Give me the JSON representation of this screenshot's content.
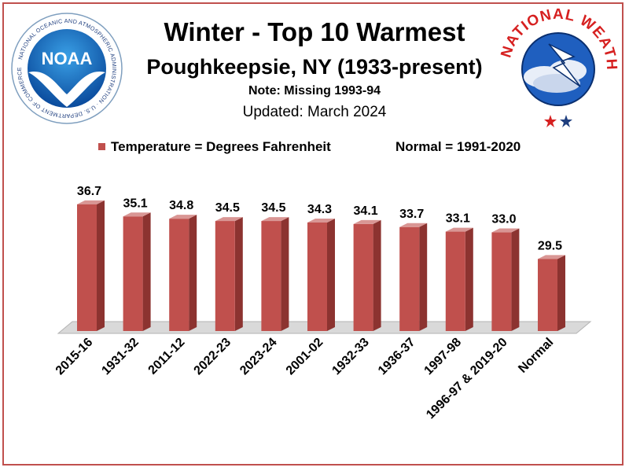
{
  "header": {
    "title": "Winter - Top 10 Warmest",
    "subtitle": "Poughkeepsie, NY (1933-present)",
    "note": "Note: Missing 1993-94",
    "updated": "Updated:  March 2024"
  },
  "legend": {
    "series_label": "Temperature = Degrees Fahrenheit",
    "normal_note": "Normal = 1991-2020"
  },
  "logos": {
    "noaa": {
      "text": "NOAA",
      "ring_text": "NATIONAL OCEANIC AND ATMOSPHERIC ADMINISTRATION · U.S. DEPARTMENT OF COMMERCE"
    },
    "nws": {
      "ring_text": "NATIONAL WEATHER SERVICE"
    }
  },
  "colors": {
    "bar_front": "#c0504d",
    "bar_side": "#8c3330",
    "bar_top": "#d99694",
    "floor": "#d9d9d9",
    "frame": "#c0504d"
  },
  "chart_data": {
    "type": "bar",
    "categories": [
      "2015-16",
      "1931-32",
      "2011-12",
      "2022-23",
      "2023-24",
      "2001-02",
      "1932-33",
      "1936-37",
      "1997-98",
      "1996-97 & 2019-20",
      "Normal"
    ],
    "values": [
      36.7,
      35.1,
      34.8,
      34.5,
      34.5,
      34.3,
      34.1,
      33.7,
      33.1,
      33.0,
      29.5
    ],
    "value_labels": [
      "36.7",
      "35.1",
      "34.8",
      "34.5",
      "34.5",
      "34.3",
      "34.1",
      "33.7",
      "33.1",
      "33.0",
      "29.5"
    ],
    "title": "Winter - Top 10 Warmest",
    "xlabel": "",
    "ylabel": "",
    "ylim": [
      20,
      40
    ],
    "grid": false,
    "legend_position": "top",
    "three_d": true
  }
}
